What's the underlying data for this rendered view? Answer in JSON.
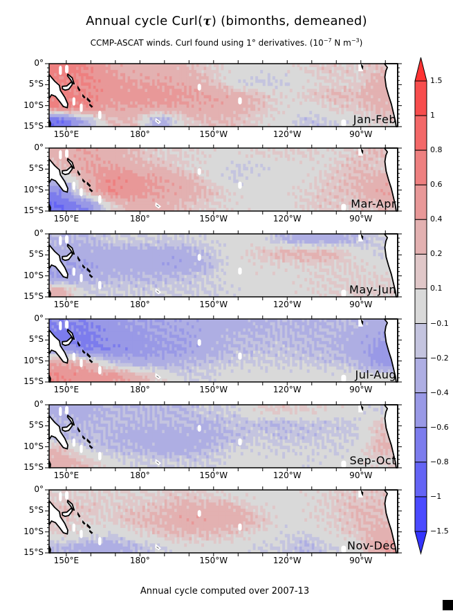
{
  "title_prefix": "Annual cycle Curl(",
  "title_symbol": "τ",
  "title_suffix": ")  (bimonths, demeaned)",
  "subtitle_main": "CCMP-ASCAT winds. Curl found using 1° derivatives. (10",
  "subtitle_exp1": "−7",
  "subtitle_mid": " N m",
  "subtitle_exp2": "−3",
  "subtitle_end": ")",
  "footer": "Annual cycle computed over 2007-13",
  "chart_data": {
    "type": "heatmap",
    "x_range_deg_east": [
      143,
      285
    ],
    "y_range_deg_south": [
      0,
      15
    ],
    "lon_ticks": [
      {
        "lon": 150,
        "label": "150°E"
      },
      {
        "lon": 180,
        "label": "180°"
      },
      {
        "lon": 210,
        "label": "150°W"
      },
      {
        "lon": 240,
        "label": "120°W"
      },
      {
        "lon": 270,
        "label": "90°W"
      }
    ],
    "lat_ticks": [
      {
        "lat": 0,
        "label": "0°"
      },
      {
        "lat": 5,
        "label": "5°S"
      },
      {
        "lat": 10,
        "label": "10°S"
      },
      {
        "lat": 15,
        "label": "15°S"
      }
    ],
    "grid_lon_centers": [
      148,
      158,
      168,
      178,
      188,
      198,
      208,
      218,
      228,
      238,
      248,
      258,
      268,
      278
    ],
    "grid_lat_centers_south": [
      1.5,
      4.5,
      7.5,
      10.5,
      13.5
    ],
    "colorbar": {
      "levels": [
        -1.5,
        -1,
        -0.8,
        -0.6,
        -0.4,
        -0.2,
        -0.1,
        0.1,
        0.2,
        0.4,
        0.6,
        0.8,
        1,
        1.5
      ],
      "labels": [
        "-1.5",
        "-1",
        "-0.8",
        "-0.6",
        "-0.4",
        "-0.2",
        "-0.1",
        "0.1",
        "0.2",
        "0.4",
        "0.6",
        "0.8",
        "1",
        "1.5"
      ],
      "colors": [
        "#3535ff",
        "#4a4aff",
        "#6464f5",
        "#7c7ced",
        "#9999e6",
        "#aeaee3",
        "#c4c4df",
        "#d9d9d9",
        "#e0c7c8",
        "#e3b1b1",
        "#e89898",
        "#ee8080",
        "#f36868",
        "#f74d4d",
        "#ff3333"
      ]
    },
    "panels": [
      {
        "label": "Jan-Feb",
        "values": [
          [
            0.7,
            0.6,
            0.4,
            0.3,
            0.3,
            0.25,
            0.15,
            0,
            0,
            0,
            0.1,
            0.15,
            0.1,
            0.2
          ],
          [
            0.6,
            0.6,
            0.5,
            0.4,
            0.4,
            0.35,
            0.2,
            0,
            -0.15,
            -0.1,
            0,
            0.1,
            0.1,
            0.3
          ],
          [
            0.7,
            0.6,
            0.5,
            0.5,
            0.5,
            0.45,
            0.4,
            0.3,
            0.2,
            0.05,
            0.15,
            0.2,
            0.2,
            0.3
          ],
          [
            0.6,
            0.6,
            0.4,
            0.4,
            0.4,
            0.35,
            0.35,
            0.3,
            0.2,
            0.05,
            0,
            0.1,
            0.15,
            0.25
          ],
          [
            -0.8,
            -0.3,
            0.2,
            0.2,
            -0.4,
            0.1,
            0.2,
            0.2,
            0.1,
            0,
            -0.15,
            -0.1,
            0,
            0.1
          ]
        ]
      },
      {
        "label": "Mar-Apr",
        "values": [
          [
            0.3,
            0.4,
            0.3,
            0.2,
            0.1,
            0.1,
            0.05,
            0,
            0.1,
            0.1,
            0.1,
            0.05,
            0.15,
            0.2
          ],
          [
            0.2,
            0.4,
            0.4,
            0.3,
            0.2,
            0.1,
            0,
            -0.1,
            -0.1,
            0,
            0,
            0.1,
            0.2,
            0.1
          ],
          [
            -0.2,
            0.3,
            0.6,
            0.5,
            0.4,
            0.3,
            0.1,
            -0.1,
            0,
            0,
            0.05,
            0.15,
            0.2,
            0.3
          ],
          [
            -0.6,
            0.2,
            0.6,
            0.5,
            0.4,
            0.3,
            0.2,
            0.05,
            0,
            0,
            0.1,
            0.15,
            0.2,
            0.4
          ],
          [
            -0.8,
            -0.6,
            0.1,
            0.3,
            0.3,
            0.2,
            0.1,
            0.05,
            0,
            0,
            0.1,
            0.15,
            0.1,
            0.2
          ]
        ]
      },
      {
        "label": "May-Jun",
        "values": [
          [
            -0.2,
            -0.2,
            -0.1,
            -0.1,
            -0.1,
            -0.1,
            -0.05,
            0,
            0,
            -0.2,
            -0.3,
            -0.3,
            -0.2,
            -0.1
          ],
          [
            -0.3,
            -0.3,
            -0.3,
            -0.3,
            -0.3,
            -0.3,
            -0.15,
            0,
            0.15,
            0.25,
            0.3,
            0.25,
            0.05,
            -0.1
          ],
          [
            -0.4,
            -0.4,
            -0.3,
            -0.3,
            -0.35,
            -0.35,
            -0.2,
            0,
            0.05,
            0.05,
            0.1,
            0.1,
            0.1,
            0
          ],
          [
            -0.4,
            -0.3,
            -0.2,
            -0.2,
            -0.2,
            -0.15,
            -0.1,
            0,
            0,
            0,
            0.05,
            0.1,
            0.1,
            0.1
          ],
          [
            0.3,
            -0.1,
            -0.1,
            -0.1,
            -0.1,
            -0.1,
            -0.1,
            -0.05,
            0,
            0,
            0.05,
            0.1,
            0.1,
            0.1
          ]
        ]
      },
      {
        "label": "Jul-Aug",
        "values": [
          [
            -0.6,
            -0.6,
            -0.5,
            -0.4,
            -0.4,
            -0.35,
            -0.3,
            -0.3,
            -0.25,
            -0.2,
            -0.25,
            -0.2,
            -0.2,
            -0.3
          ],
          [
            -0.7,
            -0.7,
            -0.5,
            -0.5,
            -0.4,
            -0.4,
            -0.3,
            -0.2,
            -0.2,
            -0.2,
            -0.2,
            -0.2,
            -0.3,
            -0.4
          ],
          [
            -0.3,
            -0.6,
            -0.6,
            -0.5,
            -0.45,
            -0.4,
            -0.3,
            -0.2,
            -0.15,
            -0.15,
            -0.2,
            -0.2,
            -0.3,
            -0.5
          ],
          [
            0.4,
            0.3,
            -0.1,
            -0.3,
            -0.3,
            -0.2,
            -0.15,
            -0.1,
            -0.1,
            -0.1,
            -0.1,
            -0.15,
            -0.2,
            -0.5
          ],
          [
            0.6,
            0.5,
            0.5,
            0.3,
            0.1,
            -0.1,
            -0.1,
            0,
            0,
            0,
            0,
            0,
            0,
            0
          ]
        ]
      },
      {
        "label": "Sep-Oct",
        "values": [
          [
            -0.3,
            -0.3,
            -0.2,
            -0.2,
            -0.2,
            -0.2,
            -0.1,
            -0.1,
            0.1,
            0.15,
            0.1,
            0.05,
            0,
            -0.1
          ],
          [
            -0.2,
            -0.2,
            -0.2,
            -0.2,
            -0.2,
            -0.2,
            -0.25,
            -0.15,
            -0.2,
            -0.2,
            -0.15,
            -0.15,
            -0.1,
            0.2
          ],
          [
            -0.2,
            -0.2,
            -0.2,
            -0.3,
            -0.3,
            -0.3,
            -0.25,
            -0.2,
            -0.1,
            -0.15,
            -0.15,
            -0.1,
            -0.1,
            0.2
          ],
          [
            0.2,
            -0.1,
            -0.2,
            -0.2,
            -0.3,
            -0.3,
            -0.2,
            -0.1,
            -0.05,
            -0.1,
            -0.05,
            -0.1,
            0,
            0.25
          ],
          [
            0.3,
            0.2,
            0,
            -0.1,
            -0.1,
            -0.1,
            -0.1,
            0,
            0,
            0,
            -0.05,
            0,
            0,
            0.1
          ]
        ]
      },
      {
        "label": "Nov-Dec",
        "values": [
          [
            0.1,
            0.1,
            0.1,
            0.1,
            0.1,
            0.15,
            0.1,
            0.05,
            0,
            0,
            0.05,
            0.1,
            0.15,
            0.15
          ],
          [
            0.2,
            0.15,
            0.1,
            0.15,
            0.2,
            0.3,
            0.3,
            0.25,
            0.1,
            0,
            0.05,
            0.1,
            0.2,
            0.2
          ],
          [
            0.15,
            0.1,
            0.1,
            0.2,
            0.25,
            0.35,
            0.35,
            0.3,
            0.2,
            0,
            0.05,
            0.1,
            0.2,
            0.2
          ],
          [
            0.1,
            0,
            -0.1,
            0.05,
            0.15,
            0.2,
            0.2,
            0.15,
            0.05,
            -0.05,
            -0.1,
            0.05,
            0.15,
            0.3
          ],
          [
            -0.2,
            -0.3,
            -0.3,
            -0.2,
            -0.1,
            0,
            0,
            0,
            -0.1,
            -0.1,
            -0.2,
            -0.1,
            0,
            0.4
          ]
        ]
      }
    ]
  }
}
